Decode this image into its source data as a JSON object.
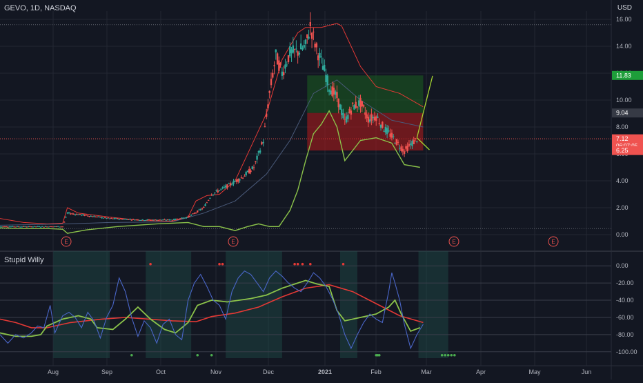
{
  "header": {
    "title": "GEVO, 1D, NASDAQ",
    "currency": "USD"
  },
  "indicator": {
    "title": "Stupid Willy"
  },
  "colors": {
    "bg": "#131722",
    "grid": "#232733",
    "text": "#b2b5be",
    "up": "#2ea89a",
    "down": "#ef5350",
    "green": "#8bc34a",
    "red": "#e53935",
    "blue": "#4a66c8",
    "zone_green": "#1b5e20",
    "zone_red": "#b71c1c"
  },
  "chart_data": [
    {
      "type": "candlestick",
      "ylim": [
        0,
        16
      ],
      "y_ticks": [
        "16.00",
        "14.00",
        "12.00",
        "10.00",
        "8.00",
        "6.00",
        "4.00",
        "2.00",
        "0.00"
      ],
      "x_ticks": [
        "Aug",
        "Sep",
        "Oct",
        "Nov",
        "Dec",
        "2021",
        "Feb",
        "Mar",
        "Apr",
        "May",
        "Jun"
      ],
      "price_labels": [
        {
          "value": 11.83,
          "text": "11.83",
          "kind": "target"
        },
        {
          "value": 9.04,
          "text": "9.04",
          "kind": "entry"
        },
        {
          "value": 7.12,
          "text": "7.12",
          "sub": "06:07:05",
          "kind": "current"
        },
        {
          "value": 6.25,
          "text": "6.25",
          "kind": "stop"
        }
      ],
      "earnings_markers": [
        "E",
        "E",
        "E",
        "E"
      ],
      "trade_zone": {
        "entry": 9.04,
        "target": 11.83,
        "stop": 6.25
      },
      "bb_upper": [
        [
          0,
          1.2
        ],
        [
          15,
          0.9
        ],
        [
          30,
          0.8
        ],
        [
          40,
          0.85
        ],
        [
          43,
          2.0
        ],
        [
          50,
          1.6
        ],
        [
          70,
          1.3
        ],
        [
          90,
          1.05
        ],
        [
          110,
          1.0
        ],
        [
          120,
          1.3
        ],
        [
          125,
          2.5
        ],
        [
          132,
          2.9
        ],
        [
          140,
          3.0
        ],
        [
          150,
          4.0
        ],
        [
          160,
          6.5
        ],
        [
          170,
          9.0
        ],
        [
          180,
          13.0
        ],
        [
          190,
          15.0
        ],
        [
          195,
          15.4
        ],
        [
          205,
          15.4
        ],
        [
          215,
          15.7
        ],
        [
          218,
          15.5
        ],
        [
          230,
          12.5
        ],
        [
          240,
          11.0
        ],
        [
          255,
          10.5
        ],
        [
          270,
          9.5
        ]
      ],
      "bb_lower": [
        [
          0,
          0.5
        ],
        [
          15,
          0.45
        ],
        [
          30,
          0.45
        ],
        [
          40,
          0.4
        ],
        [
          43,
          0.1
        ],
        [
          55,
          0.35
        ],
        [
          75,
          0.6
        ],
        [
          100,
          0.8
        ],
        [
          120,
          0.9
        ],
        [
          130,
          0.6
        ],
        [
          140,
          0.6
        ],
        [
          150,
          0.3
        ],
        [
          158,
          0.6
        ],
        [
          165,
          0.8
        ],
        [
          172,
          0.6
        ],
        [
          178,
          0.6
        ],
        [
          185,
          1.8
        ],
        [
          190,
          3.3
        ],
        [
          195,
          5.5
        ],
        [
          200,
          7.5
        ],
        [
          205,
          8.2
        ],
        [
          210,
          9.2
        ],
        [
          215,
          8.0
        ],
        [
          220,
          5.5
        ],
        [
          230,
          7.0
        ],
        [
          240,
          7.2
        ],
        [
          250,
          6.8
        ],
        [
          258,
          5.2
        ],
        [
          268,
          5.0
        ]
      ],
      "bb_mid": [
        [
          0,
          0.7
        ],
        [
          43,
          0.8
        ],
        [
          70,
          0.9
        ],
        [
          110,
          0.95
        ],
        [
          130,
          1.6
        ],
        [
          150,
          2.5
        ],
        [
          170,
          4.5
        ],
        [
          185,
          7.0
        ],
        [
          200,
          10.5
        ],
        [
          215,
          11.5
        ],
        [
          230,
          10.0
        ],
        [
          250,
          8.5
        ],
        [
          270,
          8.0
        ]
      ],
      "price_path": [
        [
          0,
          0.6
        ],
        [
          20,
          0.6
        ],
        [
          40,
          0.6
        ],
        [
          43,
          1.6
        ],
        [
          50,
          1.5
        ],
        [
          70,
          1.2
        ],
        [
          90,
          1.1
        ],
        [
          110,
          1.1
        ],
        [
          120,
          1.3
        ],
        [
          130,
          2.0
        ],
        [
          135,
          3.0
        ],
        [
          145,
          3.6
        ],
        [
          155,
          4.3
        ],
        [
          162,
          5.0
        ],
        [
          168,
          7.0
        ],
        [
          172,
          10.5
        ],
        [
          176,
          13.3
        ],
        [
          180,
          12.0
        ],
        [
          185,
          13.5
        ],
        [
          190,
          13.6
        ],
        [
          195,
          14.0
        ],
        [
          198,
          15.5
        ],
        [
          202,
          13.8
        ],
        [
          207,
          12.2
        ],
        [
          210,
          11.0
        ],
        [
          215,
          10.2
        ],
        [
          220,
          8.4
        ],
        [
          225,
          9.5
        ],
        [
          230,
          9.8
        ],
        [
          235,
          8.6
        ],
        [
          240,
          8.8
        ],
        [
          245,
          7.9
        ],
        [
          250,
          7.3
        ],
        [
          255,
          6.6
        ],
        [
          258,
          6.2
        ],
        [
          262,
          6.7
        ],
        [
          266,
          7.1
        ]
      ],
      "projection": [
        [
          266,
          7.2
        ],
        [
          276,
          11.8
        ],
        [
          266,
          7.2
        ],
        [
          274,
          6.3
        ]
      ]
    },
    {
      "type": "line",
      "ylim": [
        -105,
        5
      ],
      "y_ticks": [
        "0.00",
        "-20.00",
        "-40.00",
        "-60.00",
        "-80.00",
        "-100.00"
      ],
      "series": [
        {
          "values": [
            [
              0,
              -62
            ],
            [
              10,
              -66
            ],
            [
              20,
              -72
            ],
            [
              30,
              -72
            ],
            [
              35,
              -70
            ],
            [
              45,
              -66
            ],
            [
              55,
              -64
            ],
            [
              65,
              -62
            ],
            [
              80,
              -60
            ],
            [
              95,
              -62
            ],
            [
              110,
              -64
            ],
            [
              125,
              -65
            ],
            [
              135,
              -59
            ],
            [
              150,
              -55
            ],
            [
              165,
              -48
            ],
            [
              180,
              -36
            ],
            [
              195,
              -26
            ],
            [
              210,
              -22
            ],
            [
              225,
              -30
            ],
            [
              240,
              -44
            ],
            [
              255,
              -58
            ],
            [
              270,
              -66
            ]
          ]
        },
        {
          "values": [
            [
              0,
              -78
            ],
            [
              10,
              -82
            ],
            [
              20,
              -82
            ],
            [
              26,
              -80
            ],
            [
              30,
              -70
            ],
            [
              40,
              -62
            ],
            [
              50,
              -58
            ],
            [
              58,
              -62
            ],
            [
              62,
              -72
            ],
            [
              72,
              -74
            ],
            [
              80,
              -62
            ],
            [
              88,
              -48
            ],
            [
              96,
              -62
            ],
            [
              105,
              -74
            ],
            [
              112,
              -78
            ],
            [
              120,
              -66
            ],
            [
              126,
              -46
            ],
            [
              135,
              -40
            ],
            [
              145,
              -42
            ],
            [
              160,
              -38
            ],
            [
              170,
              -34
            ],
            [
              180,
              -26
            ],
            [
              190,
              -20
            ],
            [
              195,
              -17
            ],
            [
              202,
              -21
            ],
            [
              210,
              -24
            ],
            [
              215,
              -52
            ],
            [
              220,
              -64
            ],
            [
              230,
              -60
            ],
            [
              240,
              -56
            ],
            [
              248,
              -48
            ],
            [
              252,
              -40
            ],
            [
              256,
              -56
            ],
            [
              262,
              -76
            ],
            [
              268,
              -72
            ]
          ]
        },
        {
          "values": [
            [
              0,
              -80
            ],
            [
              5,
              -90
            ],
            [
              10,
              -80
            ],
            [
              15,
              -84
            ],
            [
              20,
              -78
            ],
            [
              24,
              -70
            ],
            [
              28,
              -72
            ],
            [
              32,
              -46
            ],
            [
              35,
              -78
            ],
            [
              40,
              -58
            ],
            [
              44,
              -54
            ],
            [
              48,
              -60
            ],
            [
              52,
              -72
            ],
            [
              56,
              -54
            ],
            [
              60,
              -64
            ],
            [
              64,
              -84
            ],
            [
              68,
              -60
            ],
            [
              72,
              -46
            ],
            [
              76,
              -14
            ],
            [
              80,
              -30
            ],
            [
              84,
              -60
            ],
            [
              88,
              -82
            ],
            [
              92,
              -64
            ],
            [
              96,
              -72
            ],
            [
              100,
              -90
            ],
            [
              104,
              -68
            ],
            [
              108,
              -62
            ],
            [
              112,
              -80
            ],
            [
              116,
              -86
            ],
            [
              120,
              -40
            ],
            [
              124,
              -20
            ],
            [
              128,
              -10
            ],
            [
              132,
              -24
            ],
            [
              136,
              -40
            ],
            [
              140,
              -46
            ],
            [
              144,
              -62
            ],
            [
              148,
              -30
            ],
            [
              152,
              -14
            ],
            [
              156,
              -6
            ],
            [
              160,
              -10
            ],
            [
              164,
              -20
            ],
            [
              168,
              -30
            ],
            [
              172,
              -14
            ],
            [
              176,
              -6
            ],
            [
              180,
              -12
            ],
            [
              184,
              -20
            ],
            [
              188,
              -26
            ],
            [
              192,
              -30
            ],
            [
              196,
              -20
            ],
            [
              200,
              -8
            ],
            [
              204,
              -14
            ],
            [
              208,
              -24
            ],
            [
              212,
              -38
            ],
            [
              216,
              -56
            ],
            [
              220,
              -80
            ],
            [
              224,
              -96
            ],
            [
              228,
              -80
            ],
            [
              232,
              -66
            ],
            [
              236,
              -56
            ],
            [
              240,
              -62
            ],
            [
              244,
              -66
            ],
            [
              248,
              -30
            ],
            [
              250,
              -8
            ],
            [
              252,
              -20
            ],
            [
              255,
              -40
            ],
            [
              258,
              -68
            ],
            [
              262,
              -96
            ],
            [
              266,
              -80
            ],
            [
              270,
              -68
            ]
          ]
        }
      ],
      "hlines": [
        0,
        -20,
        -60,
        -80,
        -100
      ]
    }
  ]
}
